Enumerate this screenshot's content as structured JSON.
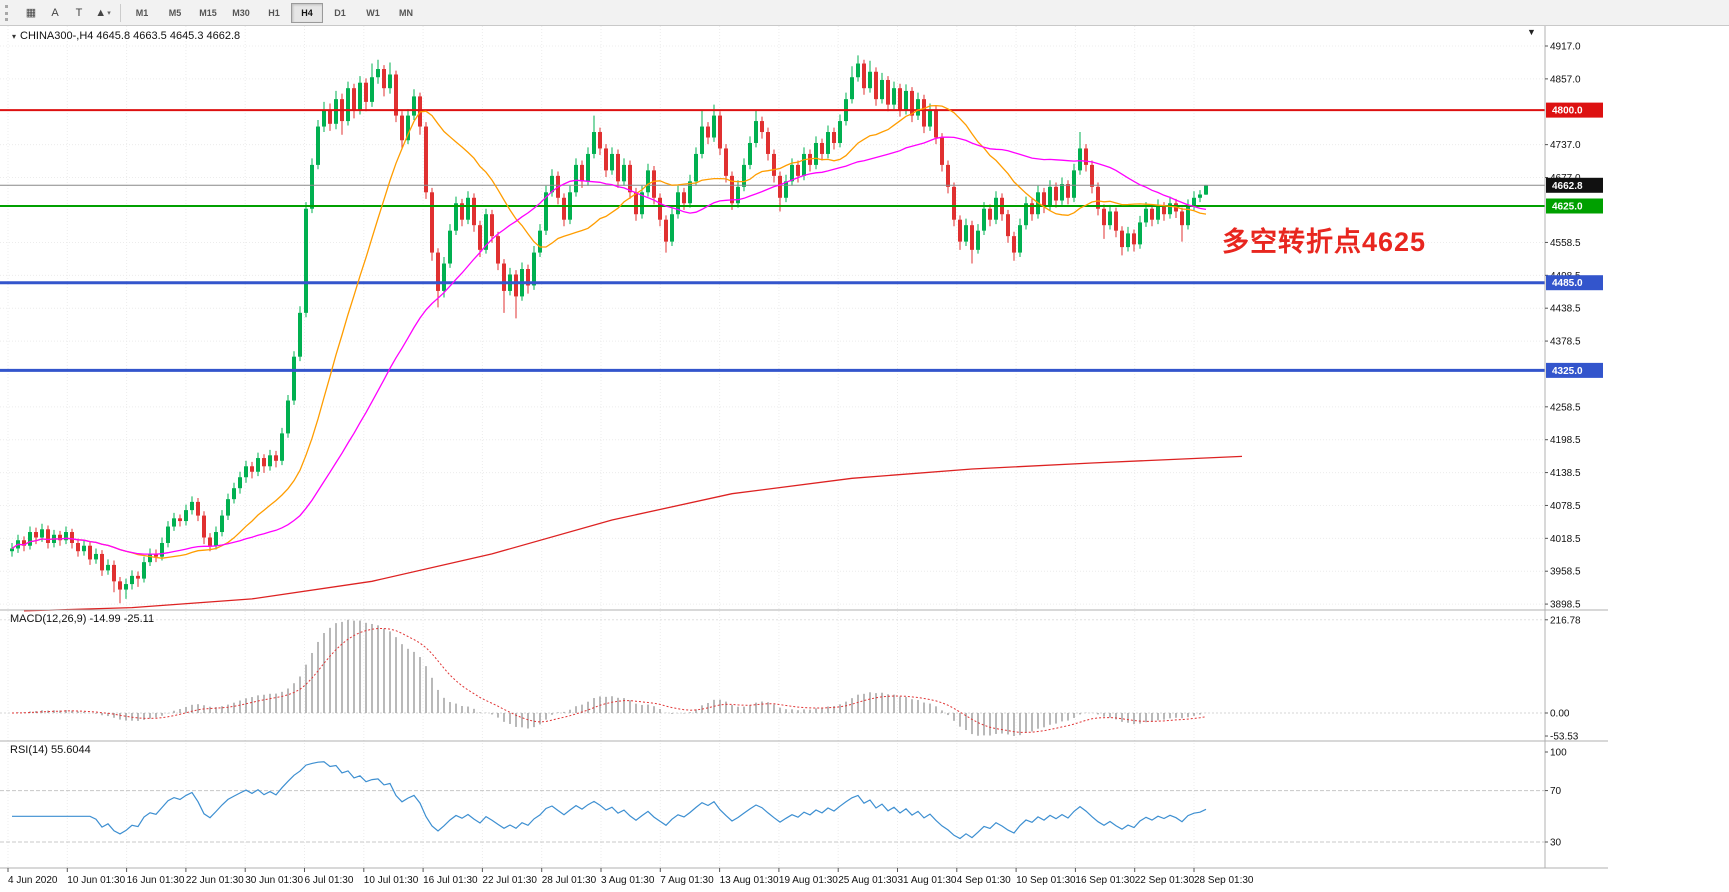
{
  "toolbar": {
    "tools": [
      {
        "name": "grid-icon",
        "glyph": "▦"
      },
      {
        "name": "text-tool-icon",
        "glyph": "A"
      },
      {
        "name": "textbox-tool-icon",
        "glyph": "T"
      },
      {
        "name": "shapes-dropdown-icon",
        "glyph": "▲",
        "caret": "▾"
      }
    ],
    "timeframes": [
      {
        "label": "M1",
        "active": false
      },
      {
        "label": "M5",
        "active": false
      },
      {
        "label": "M15",
        "active": false
      },
      {
        "label": "M30",
        "active": false
      },
      {
        "label": "H1",
        "active": false
      },
      {
        "label": "H4",
        "active": true
      },
      {
        "label": "D1",
        "active": false
      },
      {
        "label": "W1",
        "active": false
      },
      {
        "label": "MN",
        "active": false
      }
    ]
  },
  "chart": {
    "title": "CHINA300-,H4 4645.8 4663.5 4645.3 4662.8",
    "symbol": "CHINA300-",
    "period": "H4",
    "last_ohlc": {
      "open": 4645.8,
      "high": 4663.5,
      "low": 4645.3,
      "close": 4662.8
    },
    "annotation": {
      "text": "多空转折点4625",
      "color": "#e8261f"
    },
    "shift_marker_icon": "▼"
  },
  "chart_data": {
    "type": "candlestick",
    "title": "CHINA300- H4",
    "x_labels": [
      "4 Jun 2020",
      "10 Jun 01:30",
      "16 Jun 01:30",
      "22 Jun 01:30",
      "30 Jun 01:30",
      "6 Jul 01:30",
      "10 Jul 01:30",
      "16 Jul 01:30",
      "22 Jul 01:30",
      "28 Jul 01:30",
      "3 Aug 01:30",
      "7 Aug 01:30",
      "13 Aug 01:30",
      "19 Aug 01:30",
      "25 Aug 01:30",
      "31 Aug 01:30",
      "4 Sep 01:30",
      "10 Sep 01:30",
      "16 Sep 01:30",
      "22 Sep 01:30",
      "28 Sep 01:30"
    ],
    "y_axis": {
      "min": 3887.7,
      "max": 4953.5,
      "labels": [
        4917.0,
        4857.0,
        4737.0,
        4677.0,
        4558.5,
        4498.5,
        4438.5,
        4378.5,
        4258.5,
        4198.5,
        4138.5,
        4078.5,
        4018.5,
        3958.5,
        3898.5
      ]
    },
    "colors": {
      "up": "#00b050",
      "down": "#e03030",
      "grid": "#ececec"
    },
    "levels": [
      {
        "price": 4800.0,
        "color": "#dd1111",
        "width": 2,
        "badge": "4800.0",
        "badge_color": "#dd1111"
      },
      {
        "price": 4662.8,
        "color": "#888888",
        "width": 1,
        "badge": "4662.8",
        "badge_color": "#111111"
      },
      {
        "price": 4625.0,
        "color": "#00a000",
        "width": 2,
        "badge": "4625.0",
        "badge_color": "#00a000"
      },
      {
        "price": 4485.0,
        "color": "#3355cc",
        "width": 3,
        "badge": "4485.0",
        "badge_color": "#3355cc"
      },
      {
        "price": 4325.0,
        "color": "#3355cc",
        "width": 3,
        "badge": "4325.0",
        "badge_color": "#3355cc"
      }
    ],
    "candles": [
      [
        3995,
        4010,
        3985,
        4000
      ],
      [
        4000,
        4025,
        3992,
        4015
      ],
      [
        4015,
        4022,
        3995,
        4005
      ],
      [
        4005,
        4040,
        3998,
        4030
      ],
      [
        4030,
        4038,
        4008,
        4020
      ],
      [
        4020,
        4045,
        4012,
        4035
      ],
      [
        4035,
        4042,
        4000,
        4010
      ],
      [
        4010,
        4034,
        4002,
        4025
      ],
      [
        4025,
        4032,
        4005,
        4015
      ],
      [
        4015,
        4040,
        4008,
        4030
      ],
      [
        4030,
        4036,
        4000,
        4010
      ],
      [
        4010,
        4018,
        3985,
        3995
      ],
      [
        3995,
        4015,
        3987,
        4005
      ],
      [
        4005,
        4012,
        3970,
        3980
      ],
      [
        3980,
        4000,
        3972,
        3990
      ],
      [
        3990,
        3997,
        3950,
        3960
      ],
      [
        3960,
        3980,
        3952,
        3970
      ],
      [
        3970,
        3978,
        3920,
        3940
      ],
      [
        3940,
        3948,
        3900,
        3925
      ],
      [
        3925,
        3945,
        3908,
        3935
      ],
      [
        3935,
        3960,
        3925,
        3950
      ],
      [
        3950,
        3958,
        3930,
        3945
      ],
      [
        3945,
        3985,
        3938,
        3975
      ],
      [
        3975,
        4000,
        3968,
        3990
      ],
      [
        3990,
        3998,
        3975,
        3985
      ],
      [
        3985,
        4020,
        3978,
        4010
      ],
      [
        4010,
        4050,
        4002,
        4040
      ],
      [
        4040,
        4065,
        4032,
        4055
      ],
      [
        4055,
        4062,
        4040,
        4050
      ],
      [
        4050,
        4080,
        4042,
        4070
      ],
      [
        4070,
        4095,
        4062,
        4085
      ],
      [
        4085,
        4092,
        4050,
        4060
      ],
      [
        4060,
        4068,
        4008,
        4020
      ],
      [
        4020,
        4028,
        3995,
        4005
      ],
      [
        4005,
        4040,
        3998,
        4030
      ],
      [
        4030,
        4070,
        4022,
        4060
      ],
      [
        4060,
        4100,
        4052,
        4090
      ],
      [
        4090,
        4120,
        4082,
        4110
      ],
      [
        4110,
        4140,
        4100,
        4130
      ],
      [
        4130,
        4160,
        4120,
        4150
      ],
      [
        4150,
        4158,
        4128,
        4140
      ],
      [
        4140,
        4175,
        4132,
        4165
      ],
      [
        4165,
        4172,
        4138,
        4150
      ],
      [
        4150,
        4180,
        4142,
        4170
      ],
      [
        4170,
        4178,
        4148,
        4160
      ],
      [
        4160,
        4220,
        4152,
        4210
      ],
      [
        4210,
        4280,
        4202,
        4270
      ],
      [
        4270,
        4360,
        4262,
        4350
      ],
      [
        4350,
        4442,
        4342,
        4430
      ],
      [
        4430,
        4632,
        4422,
        4620
      ],
      [
        4620,
        4712,
        4612,
        4700
      ],
      [
        4700,
        4782,
        4692,
        4770
      ],
      [
        4770,
        4815,
        4760,
        4800
      ],
      [
        4800,
        4812,
        4762,
        4775
      ],
      [
        4775,
        4835,
        4765,
        4820
      ],
      [
        4820,
        4830,
        4755,
        4780
      ],
      [
        4780,
        4852,
        4772,
        4840
      ],
      [
        4840,
        4848,
        4785,
        4800
      ],
      [
        4800,
        4862,
        4792,
        4850
      ],
      [
        4850,
        4858,
        4798,
        4815
      ],
      [
        4815,
        4885,
        4806,
        4860
      ],
      [
        4860,
        4892,
        4848,
        4875
      ],
      [
        4875,
        4882,
        4825,
        4840
      ],
      [
        4840,
        4887,
        4830,
        4865
      ],
      [
        4865,
        4872,
        4778,
        4790
      ],
      [
        4790,
        4798,
        4730,
        4745
      ],
      [
        4745,
        4802,
        4738,
        4790
      ],
      [
        4790,
        4838,
        4782,
        4825
      ],
      [
        4825,
        4832,
        4755,
        4770
      ],
      [
        4770,
        4778,
        4638,
        4650
      ],
      [
        4650,
        4658,
        4525,
        4540
      ],
      [
        4540,
        4548,
        4440,
        4470
      ],
      [
        4470,
        4532,
        4458,
        4520
      ],
      [
        4520,
        4592,
        4512,
        4580
      ],
      [
        4580,
        4642,
        4572,
        4630
      ],
      [
        4630,
        4638,
        4588,
        4600
      ],
      [
        4600,
        4652,
        4592,
        4640
      ],
      [
        4640,
        4648,
        4578,
        4590
      ],
      [
        4590,
        4598,
        4532,
        4545
      ],
      [
        4545,
        4620,
        4538,
        4610
      ],
      [
        4610,
        4618,
        4558,
        4570
      ],
      [
        4570,
        4578,
        4508,
        4520
      ],
      [
        4520,
        4528,
        4430,
        4470
      ],
      [
        4470,
        4512,
        4462,
        4500
      ],
      [
        4500,
        4508,
        4420,
        4460
      ],
      [
        4460,
        4522,
        4452,
        4510
      ],
      [
        4510,
        4518,
        4465,
        4480
      ],
      [
        4480,
        4552,
        4472,
        4540
      ],
      [
        4540,
        4592,
        4532,
        4580
      ],
      [
        4580,
        4662,
        4572,
        4650
      ],
      [
        4650,
        4692,
        4642,
        4680
      ],
      [
        4680,
        4688,
        4628,
        4640
      ],
      [
        4640,
        4648,
        4588,
        4600
      ],
      [
        4600,
        4662,
        4592,
        4650
      ],
      [
        4650,
        4712,
        4642,
        4700
      ],
      [
        4700,
        4708,
        4658,
        4670
      ],
      [
        4670,
        4732,
        4662,
        4720
      ],
      [
        4720,
        4790,
        4712,
        4760
      ],
      [
        4760,
        4768,
        4718,
        4730
      ],
      [
        4730,
        4738,
        4678,
        4690
      ],
      [
        4690,
        4732,
        4682,
        4720
      ],
      [
        4720,
        4728,
        4658,
        4670
      ],
      [
        4670,
        4712,
        4662,
        4700
      ],
      [
        4700,
        4708,
        4638,
        4650
      ],
      [
        4650,
        4658,
        4598,
        4610
      ],
      [
        4610,
        4662,
        4602,
        4650
      ],
      [
        4650,
        4702,
        4642,
        4690
      ],
      [
        4690,
        4698,
        4628,
        4640
      ],
      [
        4640,
        4648,
        4588,
        4600
      ],
      [
        4600,
        4608,
        4540,
        4560
      ],
      [
        4560,
        4622,
        4552,
        4610
      ],
      [
        4610,
        4662,
        4602,
        4650
      ],
      [
        4650,
        4658,
        4618,
        4630
      ],
      [
        4630,
        4682,
        4622,
        4670
      ],
      [
        4670,
        4732,
        4662,
        4720
      ],
      [
        4720,
        4800,
        4712,
        4770
      ],
      [
        4770,
        4778,
        4738,
        4750
      ],
      [
        4750,
        4810,
        4742,
        4790
      ],
      [
        4790,
        4798,
        4718,
        4730
      ],
      [
        4730,
        4738,
        4668,
        4680
      ],
      [
        4680,
        4688,
        4618,
        4630
      ],
      [
        4630,
        4672,
        4622,
        4660
      ],
      [
        4660,
        4712,
        4652,
        4700
      ],
      [
        4700,
        4752,
        4692,
        4740
      ],
      [
        4740,
        4800,
        4732,
        4780
      ],
      [
        4780,
        4788,
        4748,
        4760
      ],
      [
        4760,
        4768,
        4708,
        4720
      ],
      [
        4720,
        4728,
        4668,
        4680
      ],
      [
        4680,
        4688,
        4615,
        4640
      ],
      [
        4640,
        4682,
        4632,
        4670
      ],
      [
        4670,
        4712,
        4662,
        4700
      ],
      [
        4700,
        4708,
        4668,
        4680
      ],
      [
        4680,
        4732,
        4672,
        4720
      ],
      [
        4720,
        4728,
        4688,
        4700
      ],
      [
        4700,
        4752,
        4692,
        4740
      ],
      [
        4740,
        4748,
        4708,
        4720
      ],
      [
        4720,
        4772,
        4712,
        4760
      ],
      [
        4760,
        4768,
        4728,
        4740
      ],
      [
        4740,
        4792,
        4732,
        4780
      ],
      [
        4780,
        4832,
        4772,
        4820
      ],
      [
        4820,
        4880,
        4812,
        4860
      ],
      [
        4860,
        4900,
        4852,
        4885
      ],
      [
        4885,
        4892,
        4828,
        4840
      ],
      [
        4840,
        4890,
        4832,
        4870
      ],
      [
        4870,
        4878,
        4808,
        4820
      ],
      [
        4820,
        4868,
        4812,
        4855
      ],
      [
        4855,
        4862,
        4798,
        4810
      ],
      [
        4810,
        4852,
        4802,
        4840
      ],
      [
        4840,
        4848,
        4788,
        4800
      ],
      [
        4800,
        4847,
        4792,
        4835
      ],
      [
        4835,
        4842,
        4778,
        4790
      ],
      [
        4790,
        4832,
        4782,
        4820
      ],
      [
        4820,
        4828,
        4758,
        4770
      ],
      [
        4770,
        4812,
        4762,
        4800
      ],
      [
        4800,
        4808,
        4738,
        4750
      ],
      [
        4750,
        4758,
        4688,
        4700
      ],
      [
        4700,
        4708,
        4648,
        4660
      ],
      [
        4660,
        4668,
        4588,
        4600
      ],
      [
        4600,
        4608,
        4545,
        4560
      ],
      [
        4560,
        4602,
        4552,
        4590
      ],
      [
        4590,
        4598,
        4520,
        4545
      ],
      [
        4545,
        4592,
        4538,
        4580
      ],
      [
        4580,
        4632,
        4572,
        4620
      ],
      [
        4620,
        4628,
        4588,
        4600
      ],
      [
        4600,
        4652,
        4592,
        4640
      ],
      [
        4640,
        4648,
        4598,
        4610
      ],
      [
        4610,
        4618,
        4558,
        4570
      ],
      [
        4570,
        4578,
        4525,
        4540
      ],
      [
        4540,
        4602,
        4532,
        4590
      ],
      [
        4590,
        4642,
        4582,
        4630
      ],
      [
        4630,
        4638,
        4598,
        4610
      ],
      [
        4610,
        4662,
        4602,
        4650
      ],
      [
        4650,
        4658,
        4612,
        4625
      ],
      [
        4625,
        4672,
        4617,
        4660
      ],
      [
        4660,
        4668,
        4622,
        4635
      ],
      [
        4635,
        4677,
        4627,
        4665
      ],
      [
        4665,
        4672,
        4628,
        4640
      ],
      [
        4640,
        4702,
        4632,
        4690
      ],
      [
        4690,
        4760,
        4682,
        4730
      ],
      [
        4730,
        4738,
        4688,
        4700
      ],
      [
        4700,
        4708,
        4648,
        4660
      ],
      [
        4660,
        4668,
        4608,
        4620
      ],
      [
        4620,
        4628,
        4565,
        4590
      ],
      [
        4590,
        4627,
        4582,
        4615
      ],
      [
        4615,
        4622,
        4568,
        4580
      ],
      [
        4580,
        4588,
        4535,
        4550
      ],
      [
        4550,
        4587,
        4542,
        4575
      ],
      [
        4575,
        4582,
        4542,
        4555
      ],
      [
        4555,
        4607,
        4547,
        4595
      ],
      [
        4595,
        4632,
        4587,
        4620
      ],
      [
        4620,
        4628,
        4588,
        4600
      ],
      [
        4600,
        4637,
        4592,
        4625
      ],
      [
        4625,
        4632,
        4598,
        4610
      ],
      [
        4610,
        4642,
        4602,
        4630
      ],
      [
        4630,
        4638,
        4603,
        4615
      ],
      [
        4615,
        4622,
        4560,
        4590
      ],
      [
        4590,
        4637,
        4582,
        4625
      ],
      [
        4625,
        4652,
        4617,
        4640
      ],
      [
        4640,
        4654,
        4632,
        4646
      ],
      [
        4645.8,
        4663.5,
        4645.3,
        4662.8
      ]
    ],
    "moving_averages": [
      {
        "name": "ma-fast-orange",
        "period": 20,
        "color": "#ff9d00"
      },
      {
        "name": "ma-mid-magenta",
        "period": 45,
        "color": "#ff00ff"
      },
      {
        "name": "ma-long-red",
        "color": "#dd2222",
        "points": [
          [
            2,
            3886
          ],
          [
            20,
            3892
          ],
          [
            40,
            3908
          ],
          [
            60,
            3940
          ],
          [
            80,
            3990
          ],
          [
            100,
            4052
          ],
          [
            120,
            4100
          ],
          [
            140,
            4128
          ],
          [
            160,
            4145
          ],
          [
            180,
            4156
          ],
          [
            205,
            4168
          ]
        ]
      }
    ],
    "macd": {
      "label": "MACD(12,26,9) -14.99 -25.11",
      "fast": 12,
      "slow": 26,
      "signal": 9,
      "current": -14.99,
      "current_signal": -25.11,
      "axis": [
        216.78,
        0,
        -53.53
      ],
      "histogram_color": "#9b9b9b",
      "signal_color": "#e03535"
    },
    "rsi": {
      "label": "RSI(14) 55.6044",
      "period": 14,
      "current": 55.6044,
      "axis": [
        100,
        70,
        30
      ],
      "level_lines": [
        70,
        30
      ],
      "line_color": "#3d8fd1"
    }
  }
}
